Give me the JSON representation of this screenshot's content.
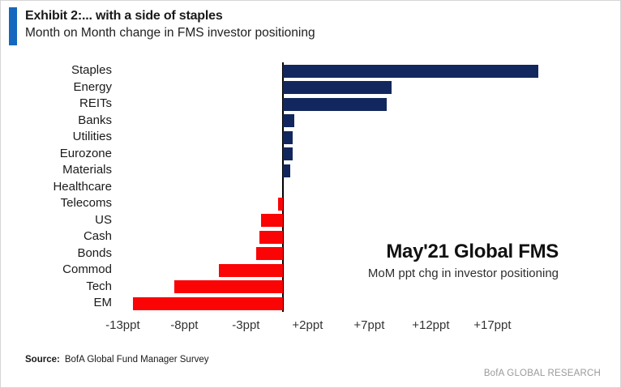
{
  "header": {
    "exhibit_title": "Exhibit 2:... with a side of staples",
    "subtitle": "Month on Month change in FMS investor positioning"
  },
  "annotation": {
    "title": "May'21 Global FMS",
    "subtitle": "MoM ppt chg in investor positioning"
  },
  "footer": {
    "source_label": "Source:",
    "source_text": "BofA Global Fund Manager Survey",
    "branding": "BofA GLOBAL RESEARCH"
  },
  "colors": {
    "accent_blue": "#1468BD",
    "positive_bar": "#12275D",
    "negative_bar": "#FB0406",
    "axis_line": "#000000"
  },
  "chart_data": {
    "type": "bar",
    "orientation": "horizontal",
    "title": "Month on Month change in FMS investor positioning",
    "unit": "ppt",
    "categories": [
      "Staples",
      "Energy",
      "REITs",
      "Banks",
      "Utilities",
      "Eurozone",
      "Materials",
      "Healthcare",
      "Telecoms",
      "US",
      "Cash",
      "Bonds",
      "Commod",
      "Tech",
      "EM"
    ],
    "values": [
      20.7,
      8.8,
      8.4,
      0.9,
      0.8,
      0.8,
      0.6,
      0,
      -0.4,
      -1.8,
      -1.9,
      -2.2,
      -5.2,
      -8.8,
      -12.2
    ],
    "xtick_labels": [
      "-13ppt",
      "-8ppt",
      "-3ppt",
      "+2ppt",
      "+7ppt",
      "+12ppt",
      "+17ppt"
    ],
    "xtick_values": [
      -13,
      -8,
      -3,
      2,
      7,
      12,
      17
    ],
    "xlim": [
      -13.4,
      21.9
    ],
    "grid": false,
    "positive_color": "#12275D",
    "negative_color": "#FB0406"
  }
}
